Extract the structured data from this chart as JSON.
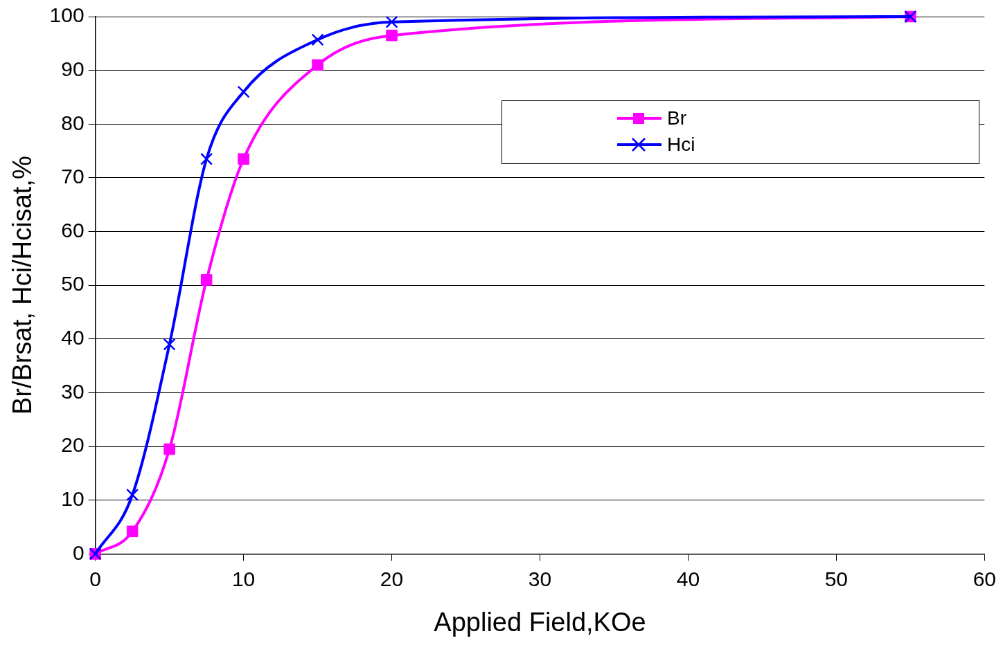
{
  "chart_data": {
    "type": "line",
    "xlabel": "Applied Field,KOe",
    "ylabel": "Br/Brsat, Hci/Hcisat,%",
    "xlim": [
      0,
      60
    ],
    "xticks": [
      0,
      10,
      20,
      30,
      40,
      50,
      60
    ],
    "ylim": [
      0,
      100
    ],
    "yticks": [
      0,
      10,
      20,
      30,
      40,
      50,
      60,
      70,
      80,
      90,
      100
    ],
    "grid": "y",
    "legend": "top right",
    "line_style": "solid",
    "series": [
      {
        "name": "Br",
        "color": "#ff00ff",
        "marker": "square",
        "x": [
          0,
          2.5,
          5,
          7.5,
          10,
          15,
          20,
          55
        ],
        "values": [
          0,
          4.2,
          19.5,
          51,
          73.5,
          91,
          96.5,
          100
        ]
      },
      {
        "name": "Hci",
        "color": "#0000ff",
        "marker": "cross",
        "x": [
          0,
          2.5,
          5,
          7.5,
          10,
          15,
          20,
          55
        ],
        "values": [
          0,
          11,
          39,
          73.5,
          86,
          95.7,
          99,
          100
        ]
      }
    ]
  }
}
